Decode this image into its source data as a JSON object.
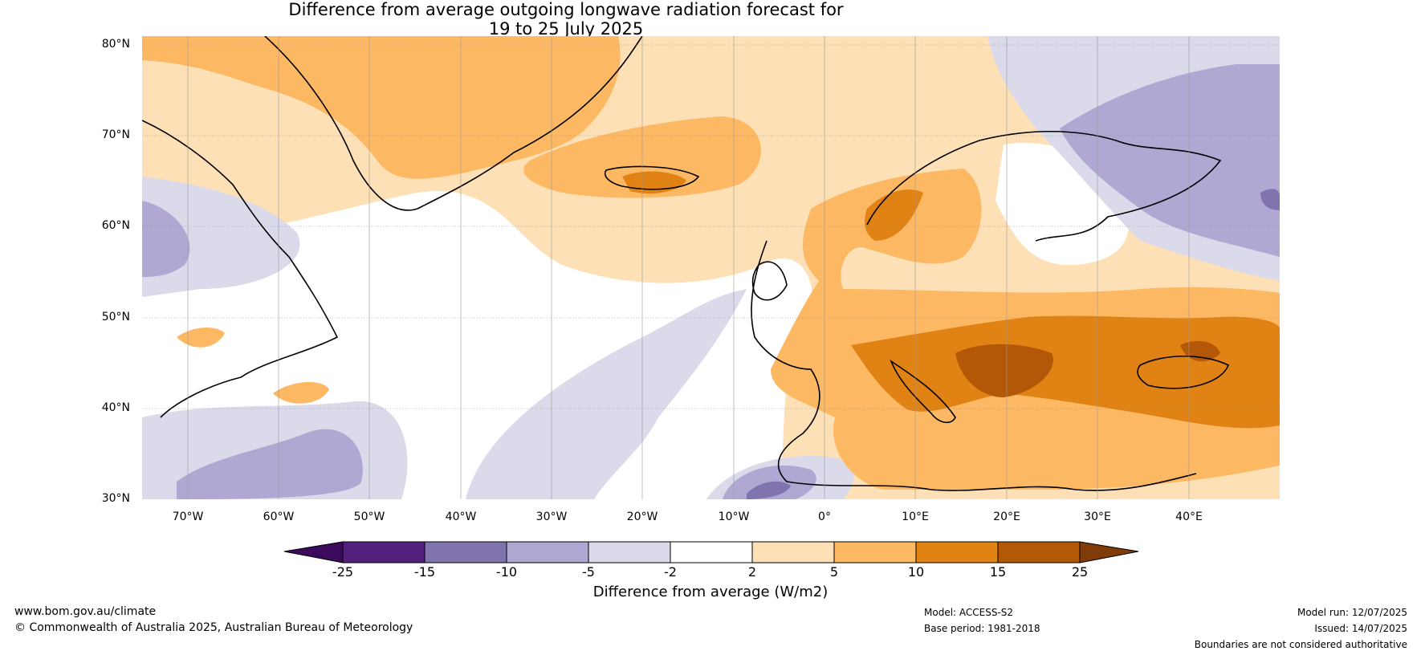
{
  "title_line1": "Difference from average outgoing longwave radiation forecast for",
  "title_line2": "19 to 25 July 2025",
  "map": {
    "latitudes": [
      "80°N",
      "70°N",
      "60°N",
      "50°N",
      "40°N",
      "30°N"
    ],
    "longitudes": [
      "70°W",
      "60°W",
      "50°W",
      "40°W",
      "30°W",
      "20°W",
      "10°W",
      "0°",
      "10°E",
      "20°E",
      "30°E",
      "40°E"
    ]
  },
  "colorbar": {
    "ticks": [
      "-25",
      "-15",
      "-10",
      "-5",
      "-2",
      "2",
      "5",
      "10",
      "15",
      "25"
    ],
    "colors": [
      "#3b0a5c",
      "#54207e",
      "#8073ae",
      "#b0a8d2",
      "#dadaeb",
      "#ffffff",
      "#fee0b6",
      "#fdb863",
      "#e08214",
      "#b35806",
      "#7f3b08"
    ],
    "label": "Difference from average (W/m2)"
  },
  "footer": {
    "website": "www.bom.gov.au/climate",
    "copyright": "© Commonwealth of Australia 2025, Australian Bureau of Meteorology",
    "model": "Model: ACCESS-S2",
    "base_period": "Base period: 1981-2018",
    "model_run": "Model run: 12/07/2025",
    "issued": "Issued: 14/07/2025",
    "disclaimer": "Boundaries are not considered authoritative"
  }
}
